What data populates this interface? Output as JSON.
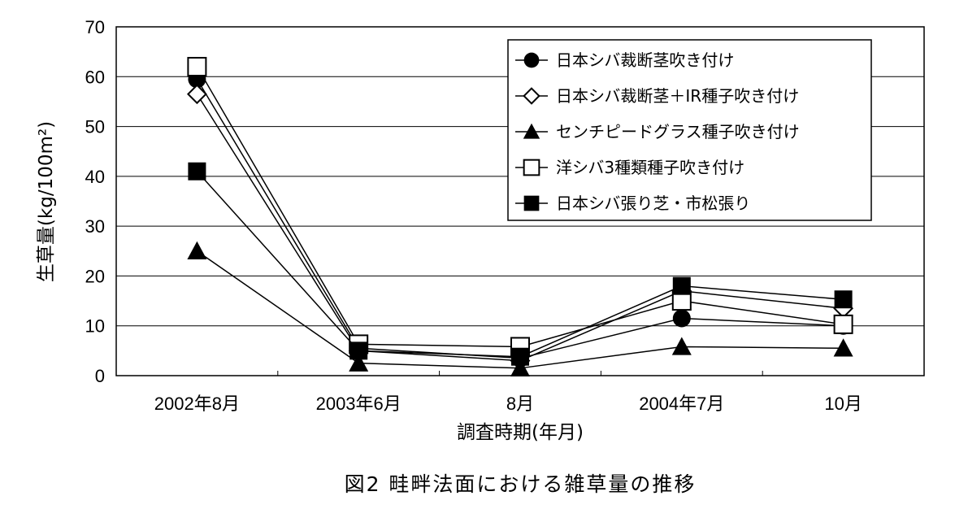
{
  "chart_data": {
    "type": "line",
    "caption": "図2  畦畔法面における雑草量の推移",
    "xlabel": "調査時期(年月)",
    "ylabel": "生草量(kg/100m²)",
    "ylim": [
      0,
      70
    ],
    "yticks": [
      "0",
      "10",
      "20",
      "30",
      "40",
      "50",
      "60",
      "70"
    ],
    "grid": true,
    "legend_position": "top-right",
    "categories": [
      "2002年8月",
      "2003年6月",
      "8月",
      "2004年7月",
      "10月"
    ],
    "series": [
      {
        "name": "日本シバ裁断茎吹き付け",
        "marker": "filled-circle",
        "values": [
          59.5,
          5.5,
          3.5,
          11.5,
          10.0
        ]
      },
      {
        "name": "日本シバ裁断茎＋IR種子吹き付け",
        "marker": "open-diamond",
        "values": [
          56.5,
          5.0,
          3.0,
          17.0,
          13.5
        ]
      },
      {
        "name": "センチピードグラス種子吹き付け",
        "marker": "filled-triangle",
        "values": [
          25.0,
          2.5,
          1.5,
          5.8,
          5.5
        ]
      },
      {
        "name": "洋シバ3種類種子吹き付け",
        "marker": "open-square",
        "values": [
          62.0,
          6.3,
          5.8,
          15.0,
          10.3
        ]
      },
      {
        "name": "日本シバ張り芝・市松張り",
        "marker": "filled-square",
        "values": [
          41.0,
          5.0,
          3.8,
          18.0,
          15.3
        ]
      }
    ]
  }
}
